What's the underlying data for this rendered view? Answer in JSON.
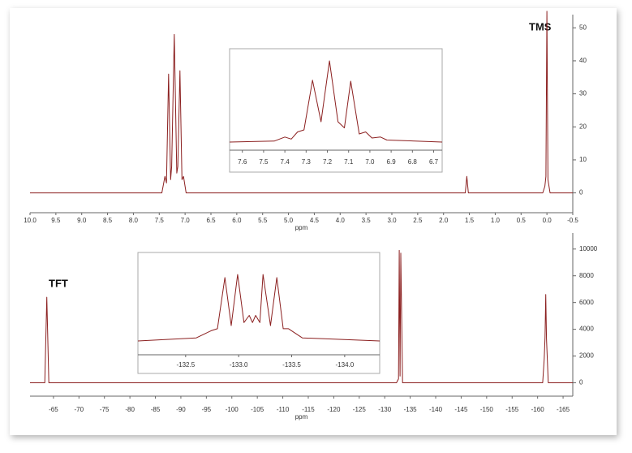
{
  "chart_data": [
    {
      "type": "line",
      "annotation": "TMS",
      "xlabel": "ppm",
      "xlim": [
        10.0,
        -0.5
      ],
      "ylim": [
        -6,
        54
      ],
      "xticks": [
        {
          "value": 10,
          "label": "10.0"
        },
        9.5,
        {
          "value": 9,
          "label": "9.0"
        },
        8.5,
        {
          "value": 8,
          "label": "8.0"
        },
        7.5,
        {
          "value": 7,
          "label": "7.0"
        },
        6.5,
        {
          "value": 6,
          "label": "6.0"
        },
        5.5,
        {
          "value": 5,
          "label": "5.0"
        },
        4.5,
        {
          "value": 4,
          "label": "4.0"
        },
        3.5,
        {
          "value": 3,
          "label": "3.0"
        },
        2.5,
        {
          "value": 2,
          "label": "2.0"
        },
        1.5,
        {
          "value": 1,
          "label": "1.0"
        },
        0.5,
        {
          "value": 0,
          "label": "0.0"
        },
        -0.5
      ],
      "yticks": [
        0,
        10,
        20,
        30,
        40,
        50
      ],
      "series": [
        {
          "color": "#8b1f1f",
          "x": [
            10.0,
            7.45,
            7.39,
            7.36,
            7.32,
            7.28,
            7.26,
            7.21,
            7.16,
            7.14,
            7.1,
            7.06,
            7.03,
            6.98,
            6.9,
            1.58,
            1.55,
            1.52,
            0.08,
            0.04,
            0.02,
            0.0,
            -0.02,
            -0.06,
            -0.5
          ],
          "values": [
            0,
            0,
            5,
            3,
            36,
            4,
            8,
            48,
            6,
            8,
            37,
            4,
            5,
            0,
            0,
            0,
            5,
            0,
            0,
            2,
            5,
            55,
            4,
            0,
            0
          ]
        }
      ]
    },
    {
      "type": "line",
      "xlim": [
        7.66,
        6.66
      ],
      "ylim": [
        -8,
        92
      ],
      "xticks": [
        7.6,
        7.5,
        7.4,
        7.3,
        7.2,
        7.1,
        {
          "value": 7,
          "label": "7.0"
        },
        6.9,
        6.8,
        6.7
      ],
      "series": [
        {
          "color": "#8b1f1f",
          "x": [
            7.66,
            7.45,
            7.4,
            7.37,
            7.34,
            7.31,
            7.27,
            7.23,
            7.19,
            7.15,
            7.12,
            7.09,
            7.05,
            7.02,
            6.99,
            6.95,
            6.92,
            6.66
          ],
          "values": [
            0,
            1,
            5,
            3,
            10,
            12,
            61,
            20,
            80,
            20,
            14,
            60,
            8,
            10,
            4,
            5,
            2,
            0
          ]
        }
      ]
    },
    {
      "type": "line",
      "annotation": "TFT",
      "xlabel": "ppm",
      "xlim": [
        -60.4,
        -166.9
      ],
      "ylim": [
        -1000,
        11200
      ],
      "xticks": [
        -65,
        -70,
        -75,
        -80,
        -85,
        -90,
        -95,
        -100,
        -105,
        -110,
        -115,
        -120,
        -125,
        -130,
        -135,
        -140,
        -145,
        -150,
        -155,
        -160,
        -165
      ],
      "yticks": [
        0,
        2000,
        4000,
        6000,
        8000,
        10000
      ],
      "series": [
        {
          "color": "#8b1f1f",
          "x": [
            -60.4,
            -63.3,
            -63.7,
            -64.1,
            -132.3,
            -132.7,
            -132.85,
            -133.0,
            -133.15,
            -133.5,
            -161.0,
            -161.3,
            -161.45,
            -161.6,
            -161.75,
            -161.9,
            -162.1,
            -166.9
          ],
          "values": [
            0,
            0,
            6400,
            0,
            0,
            300,
            9900,
            500,
            9700,
            0,
            0,
            1800,
            3400,
            6600,
            3300,
            1800,
            0,
            0
          ]
        }
      ]
    },
    {
      "type": "line",
      "xlim": [
        -132.05,
        -134.33
      ],
      "ylim": [
        -13.5,
        86.5
      ],
      "xticks": [
        -132.5,
        {
          "value": -133,
          "label": "-133.0"
        },
        -133.5,
        {
          "value": -134,
          "label": "-134.0"
        }
      ],
      "series": [
        {
          "color": "#8b1f1f",
          "x": [
            -132.05,
            -132.6,
            -132.74,
            -132.8,
            -132.87,
            -132.93,
            -132.99,
            -133.05,
            -133.1,
            -133.13,
            -133.16,
            -133.2,
            -133.23,
            -133.3,
            -133.36,
            -133.42,
            -133.47,
            -133.6,
            -134.33
          ],
          "values": [
            0,
            3,
            10,
            12,
            62,
            15,
            65,
            18,
            25,
            18,
            25,
            18,
            65,
            15,
            62,
            12,
            12,
            3,
            0
          ]
        }
      ]
    }
  ]
}
